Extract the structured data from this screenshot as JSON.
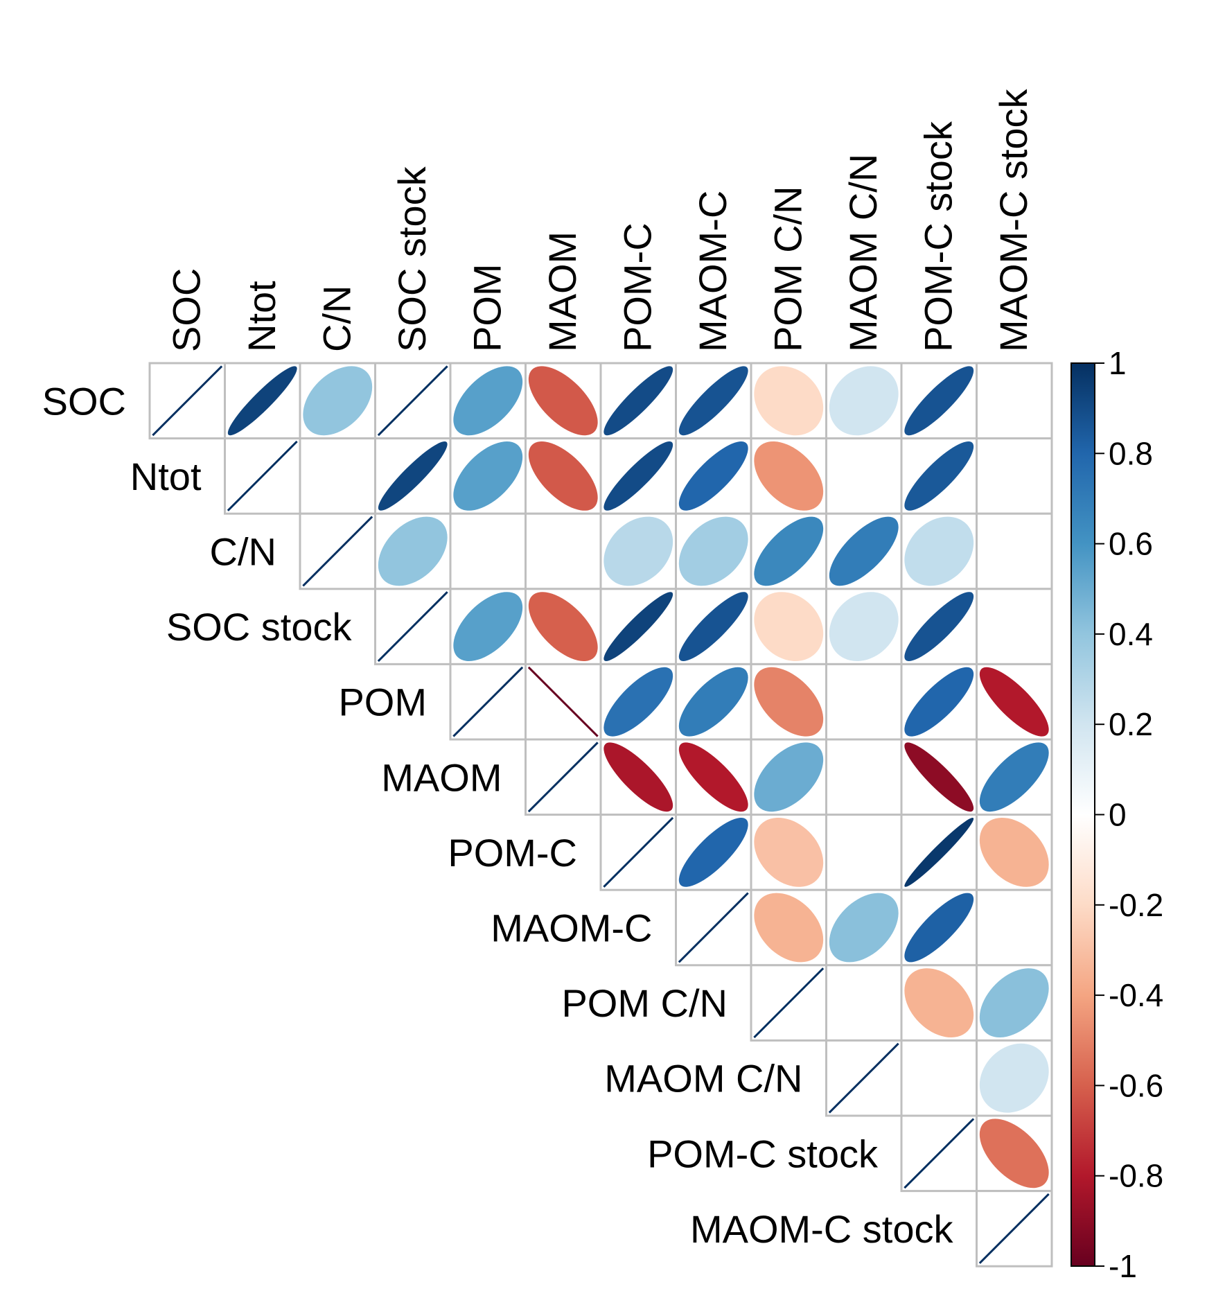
{
  "chart_data": {
    "type": "heatmap",
    "method": "ellipse",
    "layout": "upper",
    "variables": [
      "SOC",
      "Ntot",
      "C/N",
      "SOC stock",
      "POM",
      "MAOM",
      "POM-C",
      "MAOM-C",
      "POM C/N",
      "MAOM C/N",
      "POM-C stock",
      "MAOM-C stock"
    ],
    "matrix": [
      [
        1,
        0.93,
        0.4,
        1,
        0.55,
        -0.62,
        0.9,
        0.87,
        -0.2,
        0.2,
        0.87,
        null
      ],
      [
        null,
        1,
        null,
        0.92,
        0.55,
        -0.62,
        0.9,
        0.8,
        -0.45,
        null,
        0.85,
        null
      ],
      [
        null,
        null,
        1,
        0.4,
        null,
        null,
        0.28,
        0.35,
        0.65,
        0.7,
        0.25,
        null
      ],
      [
        null,
        null,
        null,
        1,
        0.55,
        -0.6,
        0.93,
        0.87,
        -0.2,
        0.2,
        0.87,
        null
      ],
      [
        null,
        null,
        null,
        null,
        1,
        -1,
        0.75,
        0.7,
        -0.5,
        null,
        0.8,
        -0.8
      ],
      [
        null,
        null,
        null,
        null,
        null,
        1,
        -0.82,
        -0.8,
        0.5,
        null,
        -0.9,
        0.7
      ],
      [
        null,
        null,
        null,
        null,
        null,
        null,
        1,
        0.8,
        -0.3,
        null,
        0.97,
        -0.35
      ],
      [
        null,
        null,
        null,
        null,
        null,
        null,
        null,
        1,
        -0.35,
        0.42,
        0.82,
        null
      ],
      [
        null,
        null,
        null,
        null,
        null,
        null,
        null,
        null,
        1,
        null,
        -0.35,
        0.42
      ],
      [
        null,
        null,
        null,
        null,
        null,
        null,
        null,
        null,
        null,
        1,
        null,
        0.2
      ],
      [
        null,
        null,
        null,
        null,
        null,
        null,
        null,
        null,
        null,
        null,
        1,
        -0.55
      ],
      [
        null,
        null,
        null,
        null,
        null,
        null,
        null,
        null,
        null,
        null,
        null,
        1
      ]
    ],
    "colorbar": {
      "min": -1,
      "max": 1,
      "ticks": [
        "1",
        "0.8",
        "0.6",
        "0.4",
        "0.2",
        "0",
        "-0.2",
        "-0.4",
        "-0.6",
        "-0.8",
        "-1"
      ]
    },
    "palette": {
      "low": "#67001f",
      "mid": "#ffffff",
      "high": "#053061",
      "grid": "#bfbfbf"
    }
  }
}
